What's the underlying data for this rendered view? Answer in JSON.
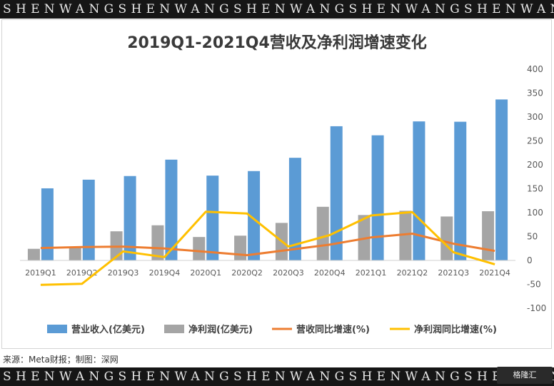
{
  "banner_text": "SHENWANGSHENWANGSHENWANGSHENWANGSHENWANGSHENWANGSHENWANGSHENWANG",
  "source": "来源：Meta财报；制图：深网",
  "watermark": "格隆汇",
  "chart_data": {
    "type": "bar",
    "title": "2019Q1-2021Q4营收及净利润增速变化",
    "categories": [
      "2019Q1",
      "2019Q2",
      "2019Q3",
      "2019Q4",
      "2020Q1",
      "2020Q2",
      "2020Q3",
      "2020Q4",
      "2021Q1",
      "2021Q2",
      "2021Q3",
      "2021Q4"
    ],
    "ylim": [
      -100,
      400
    ],
    "yticks": [
      -100,
      -50,
      0,
      50,
      100,
      150,
      200,
      250,
      300,
      350,
      400
    ],
    "grid": false,
    "legend_position": "bottom",
    "series": [
      {
        "name": "营业收入(亿美元)",
        "type": "bar",
        "color": "#5b9bd5",
        "values": [
          150.8,
          168.9,
          176.5,
          210.8,
          177.4,
          186.9,
          214.7,
          280.7,
          261.7,
          290.8,
          290.1,
          336.7
        ]
      },
      {
        "name": "净利润(亿美元)",
        "type": "bar",
        "color": "#a5a5a5",
        "values": [
          24.3,
          26.2,
          60.9,
          73.5,
          49.0,
          51.8,
          78.5,
          112.2,
          95.0,
          103.9,
          91.9,
          102.9
        ]
      },
      {
        "name": "营收同比增速(%)",
        "type": "line",
        "color": "#ed7d31",
        "values": [
          26,
          28,
          29,
          25,
          18,
          11,
          22,
          33,
          48,
          56,
          35,
          20
        ]
      },
      {
        "name": "净利润同比增速(%)",
        "type": "line",
        "color": "#ffc000",
        "values": [
          -51,
          -49,
          19,
          7,
          102,
          98,
          29,
          53,
          94,
          101,
          17,
          -8
        ]
      }
    ]
  }
}
